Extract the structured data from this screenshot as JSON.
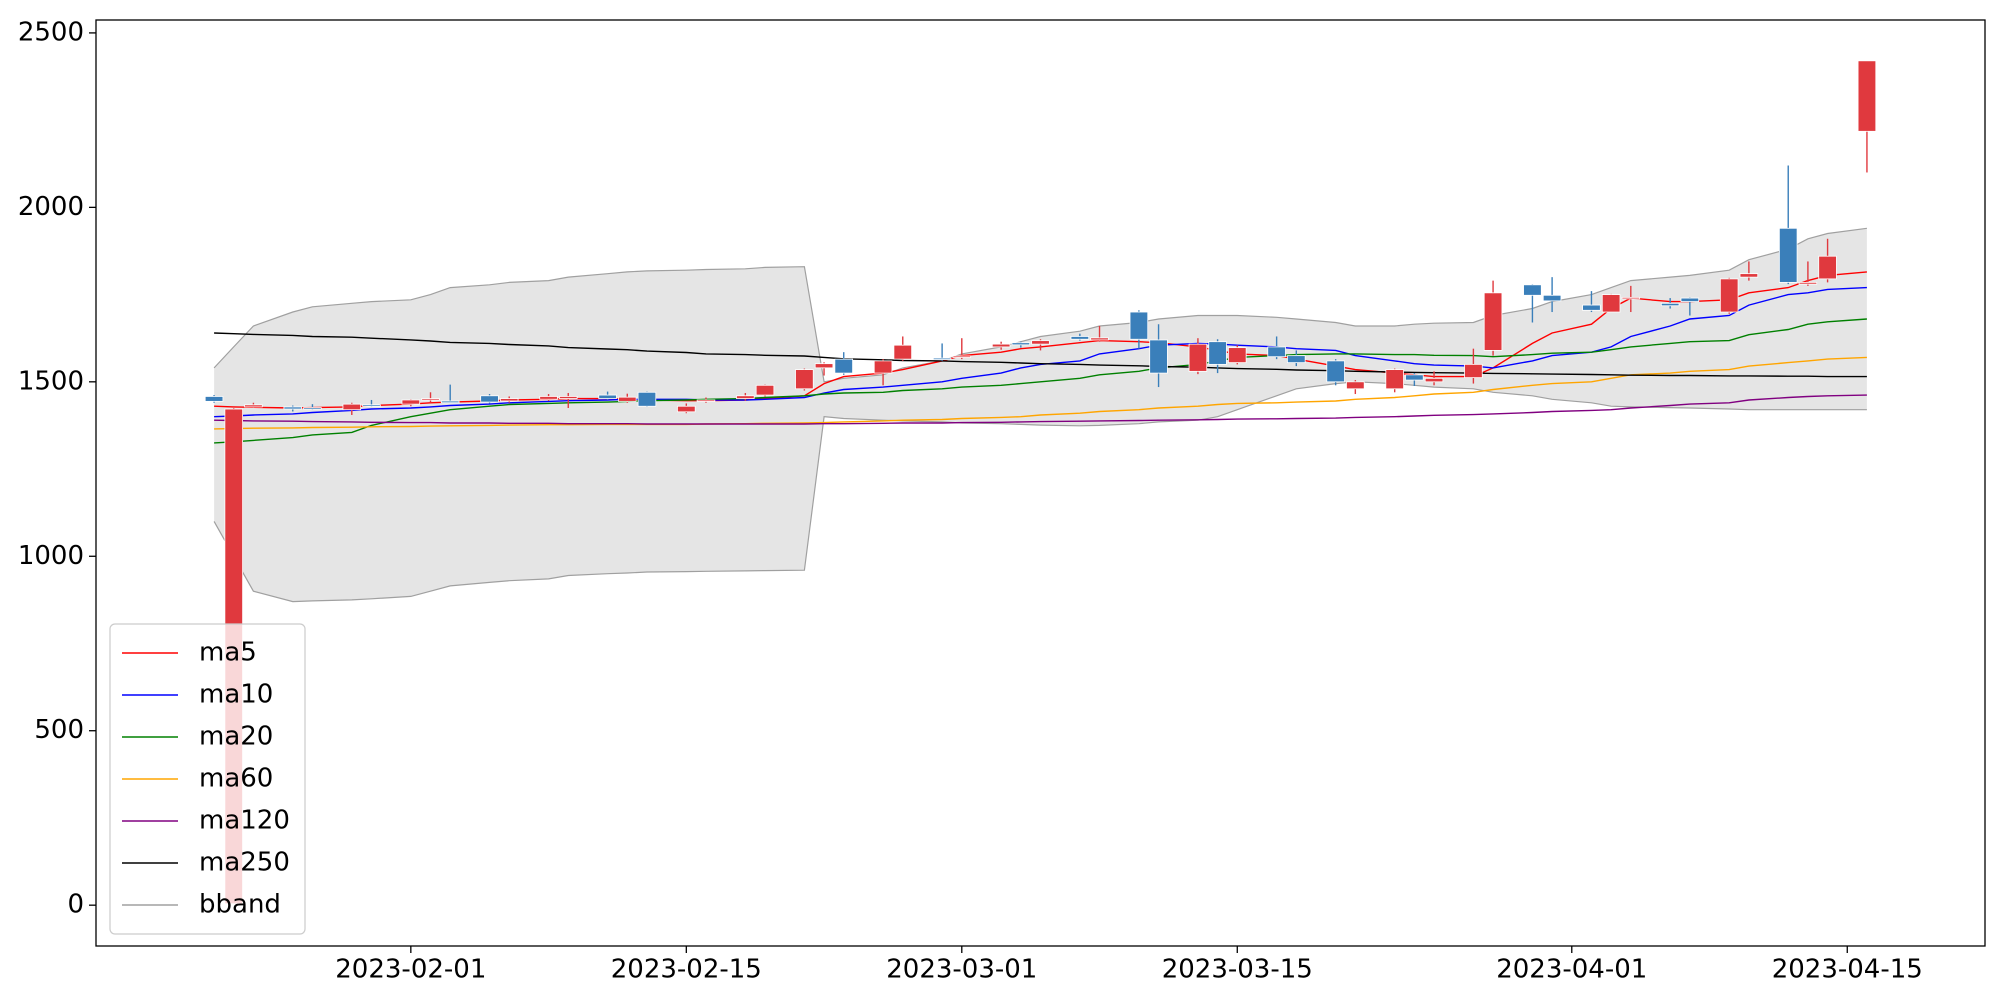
{
  "chart_data": {
    "type": "candlestick",
    "x": [
      "2023-01-22",
      "2023-01-23",
      "2023-01-24",
      "2023-01-26",
      "2023-01-27",
      "2023-01-29",
      "2023-01-30",
      "2023-02-01",
      "2023-02-02",
      "2023-02-03",
      "2023-02-05",
      "2023-02-06",
      "2023-02-08",
      "2023-02-09",
      "2023-02-11",
      "2023-02-12",
      "2023-02-13",
      "2023-02-15",
      "2023-02-16",
      "2023-02-18",
      "2023-02-19",
      "2023-02-21",
      "2023-02-22",
      "2023-02-23",
      "2023-02-25",
      "2023-02-26",
      "2023-02-28",
      "2023-03-01",
      "2023-03-03",
      "2023-03-04",
      "2023-03-05",
      "2023-03-07",
      "2023-03-08",
      "2023-03-10",
      "2023-03-11",
      "2023-03-13",
      "2023-03-14",
      "2023-03-15",
      "2023-03-17",
      "2023-03-18",
      "2023-03-20",
      "2023-03-21",
      "2023-03-23",
      "2023-03-24",
      "2023-03-25",
      "2023-03-27",
      "2023-03-28",
      "2023-03-30",
      "2023-03-31",
      "2023-04-02",
      "2023-04-03",
      "2023-04-04",
      "2023-04-06",
      "2023-04-07",
      "2023-04-09",
      "2023-04-10",
      "2023-04-12",
      "2023-04-13",
      "2023-04-14",
      "2023-04-16"
    ],
    "open": [
      1458,
      4,
      1428,
      1428,
      1426,
      1420,
      1434,
      1436,
      1448,
      1445,
      1460,
      1445,
      1450,
      1452,
      1462,
      1444,
      1470,
      1414,
      1445,
      1452,
      1462,
      1480,
      1540,
      1565,
      1525,
      1565,
      1568,
      1570,
      1600,
      1612,
      1608,
      1630,
      1620,
      1700,
      1620,
      1530,
      1615,
      1555,
      1600,
      1575,
      1560,
      1480,
      1480,
      1520,
      1500,
      1512,
      1590,
      1778,
      1748,
      1720,
      1700,
      1740,
      1725,
      1740,
      1700,
      1800,
      1940,
      1780,
      1795,
      2218
    ],
    "high": [
      1462,
      1425,
      1440,
      1432,
      1436,
      1440,
      1448,
      1450,
      1470,
      1492,
      1465,
      1458,
      1465,
      1468,
      1472,
      1466,
      1472,
      1438,
      1455,
      1468,
      1492,
      1538,
      1556,
      1585,
      1565,
      1630,
      1610,
      1625,
      1615,
      1615,
      1622,
      1638,
      1660,
      1705,
      1665,
      1625,
      1622,
      1605,
      1630,
      1590,
      1565,
      1505,
      1538,
      1525,
      1530,
      1595,
      1790,
      1780,
      1800,
      1760,
      1752,
      1775,
      1740,
      1742,
      1798,
      1845,
      2120,
      1845,
      1910,
      2420
    ],
    "low": [
      1440,
      4,
      1425,
      1415,
      1420,
      1405,
      1428,
      1430,
      1440,
      1440,
      1438,
      1440,
      1445,
      1425,
      1448,
      1440,
      1428,
      1410,
      1440,
      1446,
      1458,
      1475,
      1518,
      1520,
      1490,
      1560,
      1560,
      1565,
      1592,
      1598,
      1590,
      1618,
      1615,
      1595,
      1485,
      1522,
      1525,
      1550,
      1565,
      1545,
      1490,
      1465,
      1470,
      1488,
      1490,
      1495,
      1575,
      1670,
      1700,
      1700,
      1700,
      1700,
      1710,
      1690,
      1695,
      1790,
      1780,
      1775,
      1785,
      2100
    ],
    "close": [
      1444,
      1422,
      1434,
      1422,
      1424,
      1436,
      1432,
      1448,
      1452,
      1440,
      1442,
      1452,
      1458,
      1458,
      1452,
      1456,
      1430,
      1430,
      1448,
      1460,
      1490,
      1535,
      1552,
      1525,
      1560,
      1605,
      1565,
      1574,
      1608,
      1606,
      1618,
      1622,
      1626,
      1622,
      1525,
      1608,
      1550,
      1598,
      1572,
      1555,
      1500,
      1500,
      1535,
      1505,
      1510,
      1550,
      1755,
      1748,
      1732,
      1705,
      1750,
      1742,
      1718,
      1730,
      1795,
      1810,
      1785,
      1785,
      1860,
      2420
    ],
    "up_color": "#e0393e",
    "down_color": "#3a7fba",
    "series": [
      {
        "name": "ma5",
        "color": "#ff0000",
        "values": [
          1430,
          1428,
          1427,
          1425,
          1426,
          1428,
          1432,
          1436,
          1440,
          1442,
          1445,
          1448,
          1450,
          1452,
          1452,
          1450,
          1448,
          1446,
          1446,
          1448,
          1452,
          1460,
          1495,
          1515,
          1525,
          1535,
          1560,
          1575,
          1585,
          1595,
          1600,
          1612,
          1618,
          1615,
          1612,
          1600,
          1590,
          1580,
          1575,
          1565,
          1545,
          1535,
          1525,
          1520,
          1515,
          1515,
          1540,
          1610,
          1640,
          1665,
          1710,
          1740,
          1730,
          1730,
          1735,
          1755,
          1770,
          1790,
          1805,
          1815
        ]
      },
      {
        "name": "ma10",
        "color": "#0000ff",
        "values": [
          1400,
          1402,
          1405,
          1408,
          1412,
          1418,
          1422,
          1425,
          1428,
          1432,
          1436,
          1440,
          1444,
          1446,
          1448,
          1450,
          1450,
          1450,
          1448,
          1448,
          1450,
          1455,
          1468,
          1478,
          1485,
          1490,
          1500,
          1510,
          1525,
          1540,
          1550,
          1560,
          1580,
          1595,
          1605,
          1610,
          1608,
          1605,
          1600,
          1595,
          1590,
          1575,
          1560,
          1552,
          1548,
          1545,
          1540,
          1560,
          1575,
          1585,
          1600,
          1630,
          1660,
          1680,
          1690,
          1720,
          1750,
          1755,
          1765,
          1770
        ]
      },
      {
        "name": "ma20",
        "color": "#008000",
        "values": [
          1325,
          1328,
          1332,
          1340,
          1348,
          1355,
          1375,
          1400,
          1410,
          1420,
          1430,
          1435,
          1438,
          1440,
          1442,
          1444,
          1446,
          1448,
          1450,
          1452,
          1455,
          1460,
          1465,
          1468,
          1470,
          1475,
          1480,
          1485,
          1490,
          1495,
          1500,
          1510,
          1520,
          1530,
          1540,
          1550,
          1560,
          1570,
          1575,
          1578,
          1580,
          1580,
          1578,
          1578,
          1576,
          1575,
          1572,
          1578,
          1582,
          1585,
          1592,
          1600,
          1610,
          1615,
          1618,
          1635,
          1650,
          1665,
          1672,
          1680
        ]
      },
      {
        "name": "ma60",
        "color": "#ffa500",
        "values": [
          1365,
          1366,
          1367,
          1368,
          1369,
          1370,
          1371,
          1372,
          1373,
          1374,
          1375,
          1376,
          1377,
          1377,
          1378,
          1378,
          1378,
          1378,
          1379,
          1380,
          1381,
          1382,
          1383,
          1385,
          1388,
          1390,
          1392,
          1395,
          1398,
          1400,
          1405,
          1410,
          1415,
          1420,
          1425,
          1430,
          1435,
          1438,
          1440,
          1442,
          1445,
          1450,
          1455,
          1460,
          1465,
          1470,
          1478,
          1490,
          1495,
          1500,
          1510,
          1520,
          1525,
          1530,
          1535,
          1545,
          1555,
          1560,
          1565,
          1570
        ]
      },
      {
        "name": "ma120",
        "color": "#800080",
        "values": [
          1390,
          1389,
          1388,
          1387,
          1386,
          1385,
          1384,
          1383,
          1383,
          1382,
          1382,
          1381,
          1381,
          1380,
          1380,
          1380,
          1379,
          1379,
          1379,
          1379,
          1379,
          1379,
          1380,
          1380,
          1381,
          1382,
          1382,
          1383,
          1384,
          1385,
          1386,
          1387,
          1388,
          1389,
          1390,
          1391,
          1392,
          1393,
          1394,
          1395,
          1396,
          1398,
          1400,
          1402,
          1404,
          1406,
          1408,
          1412,
          1415,
          1418,
          1420,
          1425,
          1432,
          1436,
          1440,
          1448,
          1455,
          1458,
          1460,
          1462
        ]
      },
      {
        "name": "ma250",
        "color": "#000000",
        "values": [
          1640,
          1638,
          1636,
          1633,
          1630,
          1628,
          1625,
          1620,
          1617,
          1613,
          1610,
          1607,
          1603,
          1598,
          1594,
          1592,
          1588,
          1584,
          1580,
          1578,
          1576,
          1574,
          1570,
          1566,
          1563,
          1561,
          1560,
          1558,
          1556,
          1554,
          1552,
          1550,
          1548,
          1546,
          1544,
          1542,
          1540,
          1538,
          1536,
          1534,
          1532,
          1530,
          1528,
          1527,
          1526,
          1525,
          1524,
          1523,
          1522,
          1521,
          1520,
          1519,
          1518,
          1518,
          1517,
          1517,
          1516,
          1516,
          1515,
          1515
        ]
      },
      {
        "name": "bband",
        "color": "#a0a0a0",
        "fill": "#e5e5e5",
        "upper": [
          1540,
          1600,
          1660,
          1700,
          1715,
          1725,
          1730,
          1735,
          1750,
          1770,
          1778,
          1785,
          1790,
          1800,
          1810,
          1815,
          1818,
          1820,
          1822,
          1824,
          1828,
          1830,
          1500,
          1510,
          1520,
          1540,
          1560,
          1580,
          1600,
          1615,
          1630,
          1645,
          1660,
          1670,
          1680,
          1690,
          1690,
          1690,
          1685,
          1680,
          1670,
          1660,
          1660,
          1665,
          1668,
          1670,
          1690,
          1710,
          1730,
          1750,
          1770,
          1790,
          1800,
          1805,
          1820,
          1850,
          1880,
          1910,
          1925,
          1940
        ],
        "lower": [
          1100,
          1000,
          900,
          870,
          872,
          875,
          878,
          885,
          900,
          915,
          925,
          930,
          935,
          945,
          950,
          952,
          955,
          956,
          957,
          958,
          959,
          960,
          1400,
          1395,
          1390,
          1388,
          1385,
          1382,
          1380,
          1378,
          1376,
          1374,
          1375,
          1380,
          1385,
          1390,
          1400,
          1420,
          1460,
          1480,
          1495,
          1500,
          1495,
          1490,
          1485,
          1480,
          1470,
          1460,
          1450,
          1440,
          1430,
          1428,
          1426,
          1425,
          1422,
          1420,
          1420,
          1420,
          1420,
          1420
        ]
      }
    ],
    "xlim": [
      "2023-01-16",
      "2023-04-22"
    ],
    "xticks": [
      "2023-02-01",
      "2023-02-15",
      "2023-03-01",
      "2023-03-15",
      "2023-04-01",
      "2023-04-15"
    ],
    "ylim": [
      -117,
      2537
    ],
    "yticks": [
      0,
      500,
      1000,
      1500,
      2000,
      2500
    ],
    "legend": "lower left"
  }
}
